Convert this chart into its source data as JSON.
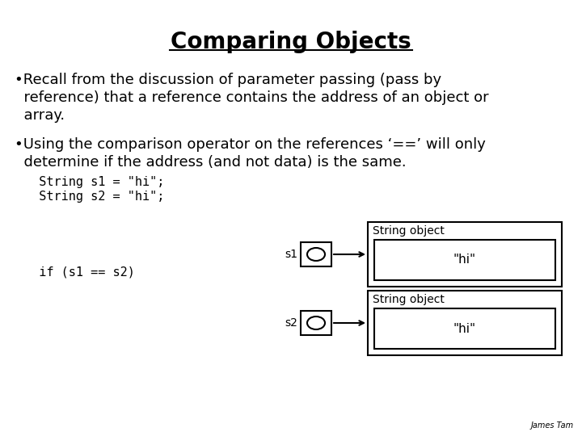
{
  "title": "Comparing Objects",
  "bg_color": "#ffffff",
  "title_fontsize": 20,
  "title_font": "sans-serif",
  "bullet1_line1": "•Recall from the discussion of parameter passing (pass by",
  "bullet1_line2": "  reference) that a reference contains the address of an object or",
  "bullet1_line3": "  array.",
  "bullet2_line1": "•Using the comparison operator on the references ‘==’ will only",
  "bullet2_line2": "  determine if the address (and not data) is the same.",
  "code1": "  String s1 = \"hi\";",
  "code2": "  String s2 = \"hi\";",
  "code3": "  if (s1 == s2)",
  "label_s1": "s1",
  "label_s2": "s2",
  "string_obj_label": "String object",
  "hi_label": "\"hi\"",
  "footer": "James Tam",
  "text_fontsize": 13,
  "code_fontsize": 11,
  "diag_fontsize": 10,
  "small_fontsize": 7
}
